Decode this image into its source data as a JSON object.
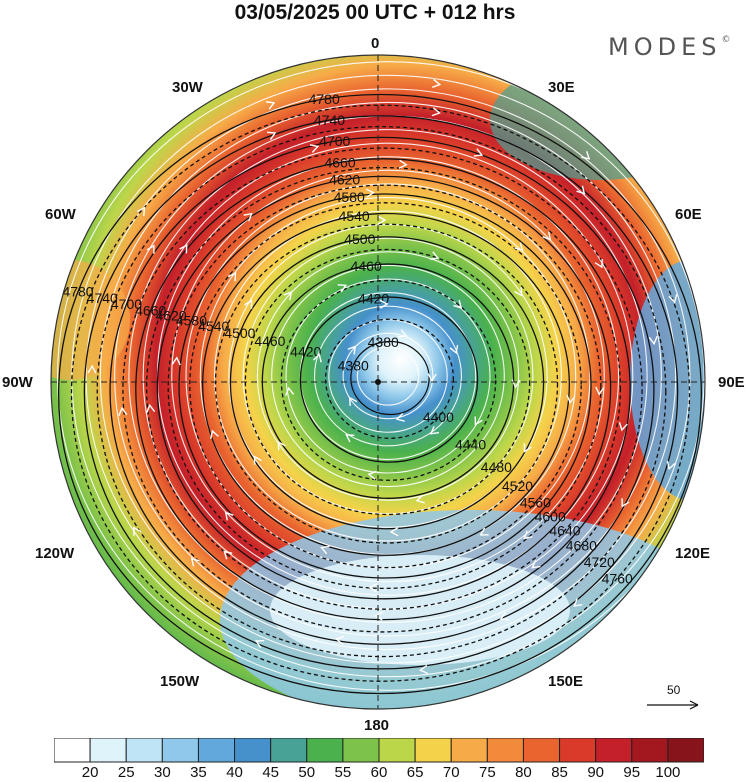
{
  "header": {
    "title": "03/05/2025  00 UTC  + 012 hrs",
    "brand": "MODES"
  },
  "lon_labels": {
    "top": "0",
    "bottom": "180",
    "left_mid": "90W",
    "right_mid": "90E",
    "ul30": "30W",
    "ur30": "30E",
    "ul60": "60W",
    "ur60": "60E",
    "ll120": "120W",
    "lr120": "120E",
    "ll150": "150W",
    "lr150": "150E"
  },
  "scale": {
    "value": "50"
  },
  "colorbar": {
    "colors": [
      "#ffffff",
      "#dff3fb",
      "#bfe4f6",
      "#8fc8ea",
      "#63a8dd",
      "#4690cc",
      "#48a296",
      "#4ab14d",
      "#7dc24a",
      "#bcd64a",
      "#f4d34a",
      "#f7ab48",
      "#f28a3c",
      "#e9642f",
      "#d93a2a",
      "#c4202a",
      "#a3171e",
      "#86141a"
    ],
    "labels": [
      "20",
      "25",
      "30",
      "35",
      "40",
      "45",
      "50",
      "55",
      "60",
      "65",
      "70",
      "75",
      "80",
      "85",
      "90",
      "95",
      "100"
    ]
  },
  "contours": [
    {
      "label": "4380",
      "r": 38
    },
    {
      "label": "4400",
      "r": 62
    },
    {
      "label": "4420",
      "r": 86
    },
    {
      "label": "4440",
      "r": 104
    },
    {
      "label": "4460",
      "r": 122
    },
    {
      "label": "4480",
      "r": 138
    },
    {
      "label": "4500",
      "r": 152
    },
    {
      "label": "4520",
      "r": 166
    },
    {
      "label": "4540",
      "r": 178
    },
    {
      "label": "4560",
      "r": 190
    },
    {
      "label": "4580",
      "r": 200
    },
    {
      "label": "4600",
      "r": 210
    },
    {
      "label": "4620",
      "r": 220
    },
    {
      "label": "4640",
      "r": 230
    },
    {
      "label": "4660",
      "r": 240
    },
    {
      "label": "4680",
      "r": 252
    },
    {
      "label": "4700",
      "r": 264
    },
    {
      "label": "4720",
      "r": 276
    },
    {
      "label": "4740",
      "r": 288
    },
    {
      "label": "4760",
      "r": 300
    },
    {
      "label": "4780",
      "r": 312
    }
  ]
}
